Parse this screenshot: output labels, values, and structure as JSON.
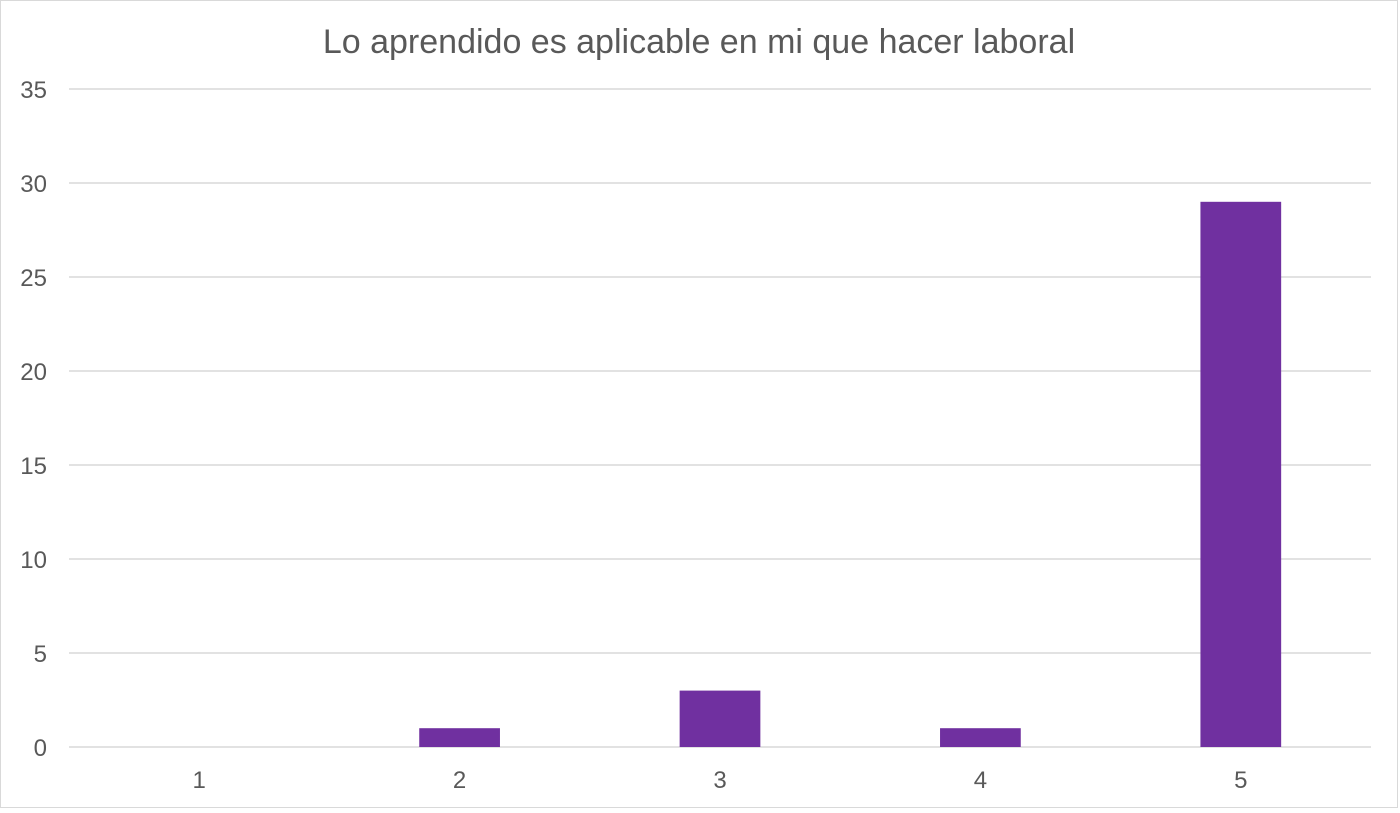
{
  "chart_data": {
    "type": "bar",
    "title": "Lo aprendido es aplicable en mi que hacer laboral",
    "xlabel": "",
    "ylabel": "",
    "categories": [
      "1",
      "2",
      "3",
      "4",
      "5"
    ],
    "values": [
      0,
      1,
      3,
      1,
      29
    ],
    "ylim": [
      0,
      35
    ],
    "y_ticks": [
      0,
      5,
      10,
      15,
      20,
      25,
      30,
      35
    ],
    "y_tick_labels": [
      "0",
      "5",
      "10",
      "15",
      "20",
      "25",
      "30",
      "35"
    ],
    "grid": true,
    "legend": "none",
    "colors": {
      "bar": "#7030a0",
      "grid": "#d9d9d9",
      "text": "#595959"
    }
  }
}
